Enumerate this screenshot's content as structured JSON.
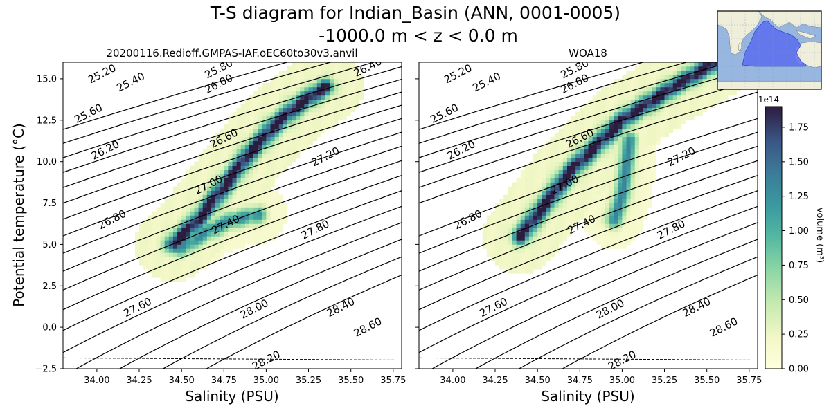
{
  "title_line1": "T-S diagram for Indian_Basin (ANN, 0001-0005)",
  "title_line2": "-1000.0 m < z < 0.0 m",
  "chart_data": [
    {
      "type": "heatmap",
      "panel": "left",
      "title": "20200116.Redioff.GMPAS-IAF.oEC60to30v3.anvil",
      "xlabel": "Salinity (PSU)",
      "ylabel": "Potential temperature ($^\\circ$C)",
      "ylabel_display": "Potential temperature (°C)",
      "xlim": [
        33.8,
        35.8
      ],
      "ylim": [
        -2.5,
        16.0
      ],
      "xticks": [
        "34.00",
        "34.25",
        "34.50",
        "34.75",
        "35.00",
        "35.25",
        "35.50",
        "35.75"
      ],
      "xtick_values": [
        34.0,
        34.25,
        34.5,
        34.75,
        35.0,
        35.25,
        35.5,
        35.75
      ],
      "yticks": [
        "−2.5",
        "0.0",
        "2.5",
        "5.0",
        "7.5",
        "10.0",
        "12.5",
        "15.0"
      ],
      "ytick_values": [
        -2.5,
        0.0,
        2.5,
        5.0,
        7.5,
        10.0,
        12.5,
        15.0
      ],
      "freezing_line": {
        "s": [
          33.8,
          35.8
        ],
        "t": [
          -1.85,
          -1.98
        ]
      },
      "main_ridge": [
        [
          34.45,
          5.0
        ],
        [
          34.6,
          6.5
        ],
        [
          34.75,
          8.5
        ],
        [
          34.9,
          10.5
        ],
        [
          35.05,
          12.2
        ],
        [
          35.2,
          13.5
        ],
        [
          35.35,
          14.5
        ]
      ],
      "secondary_ridge": [
        [
          34.5,
          4.8
        ],
        [
          34.65,
          5.8
        ],
        [
          34.8,
          6.5
        ],
        [
          34.95,
          6.8
        ]
      ],
      "contours": [
        {
          "label": "25.20",
          "s": 34.03,
          "t": 15.3
        },
        {
          "label": "25.40",
          "s": 34.2,
          "t": 14.8
        },
        {
          "label": "25.60",
          "s": 33.95,
          "t": 12.9
        },
        {
          "label": "25.80",
          "s": 34.72,
          "t": 15.6
        },
        {
          "label": "26.00",
          "s": 34.72,
          "t": 14.7
        },
        {
          "label": "26.20",
          "s": 34.05,
          "t": 10.7
        },
        {
          "label": "26.40",
          "s": 35.6,
          "t": 15.7
        },
        {
          "label": "26.60",
          "s": 34.75,
          "t": 11.4
        },
        {
          "label": "26.80",
          "s": 34.09,
          "t": 6.5
        },
        {
          "label": "27.00",
          "s": 34.66,
          "t": 8.6
        },
        {
          "label": "27.20",
          "s": 35.35,
          "t": 10.3
        },
        {
          "label": "27.40",
          "s": 34.76,
          "t": 6.2
        },
        {
          "label": "27.60",
          "s": 34.24,
          "t": 1.2
        },
        {
          "label": "27.80",
          "s": 35.29,
          "t": 5.9
        },
        {
          "label": "28.00",
          "s": 34.93,
          "t": 1.1
        },
        {
          "label": "28.20",
          "s": 35.0,
          "t": -2.0
        },
        {
          "label": "28.40",
          "s": 35.44,
          "t": 1.2
        },
        {
          "label": "28.60",
          "s": 35.6,
          "t": 0.0
        }
      ]
    },
    {
      "type": "heatmap",
      "panel": "right",
      "title": "WOA18",
      "xlabel": "Salinity (PSU)",
      "xlim": [
        33.8,
        35.8
      ],
      "ylim": [
        -2.5,
        16.0
      ],
      "xticks": [
        "34.00",
        "34.25",
        "34.50",
        "34.75",
        "35.00",
        "35.25",
        "35.50",
        "35.75"
      ],
      "xtick_values": [
        34.0,
        34.25,
        34.5,
        34.75,
        35.0,
        35.25,
        35.5,
        35.75
      ],
      "freezing_line": {
        "s": [
          33.8,
          35.8
        ],
        "t": [
          -1.85,
          -1.98
        ]
      },
      "main_ridge": [
        [
          34.4,
          5.5
        ],
        [
          34.55,
          7.5
        ],
        [
          34.7,
          9.5
        ],
        [
          34.85,
          11.0
        ],
        [
          35.0,
          12.5
        ],
        [
          35.15,
          13.5
        ],
        [
          35.3,
          14.5
        ],
        [
          35.55,
          16.0
        ]
      ],
      "secondary_ridge": [
        [
          34.95,
          6.5
        ],
        [
          35.0,
          8.0
        ],
        [
          35.02,
          9.5
        ],
        [
          35.04,
          11.3
        ]
      ],
      "contours": [
        {
          "label": "25.20",
          "s": 34.03,
          "t": 15.3
        },
        {
          "label": "25.40",
          "s": 34.2,
          "t": 14.8
        },
        {
          "label": "25.60",
          "s": 33.95,
          "t": 12.9
        },
        {
          "label": "25.80",
          "s": 34.72,
          "t": 15.6
        },
        {
          "label": "26.00",
          "s": 34.72,
          "t": 14.7
        },
        {
          "label": "26.20",
          "s": 34.05,
          "t": 10.7
        },
        {
          "label": "26.60",
          "s": 34.75,
          "t": 11.4
        },
        {
          "label": "26.80",
          "s": 34.09,
          "t": 6.5
        },
        {
          "label": "27.00",
          "s": 34.66,
          "t": 8.6
        },
        {
          "label": "27.20",
          "s": 35.35,
          "t": 10.3
        },
        {
          "label": "27.40",
          "s": 34.76,
          "t": 6.2
        },
        {
          "label": "27.60",
          "s": 34.24,
          "t": 1.2
        },
        {
          "label": "27.80",
          "s": 35.29,
          "t": 5.9
        },
        {
          "label": "28.00",
          "s": 34.93,
          "t": 1.1
        },
        {
          "label": "28.20",
          "s": 35.0,
          "t": -2.0
        },
        {
          "label": "28.40",
          "s": 35.44,
          "t": 1.2
        },
        {
          "label": "28.60",
          "s": 35.6,
          "t": 0.0
        }
      ]
    }
  ],
  "colorbar": {
    "label": "volume (m$^3$)",
    "label_display": "volume (m³)",
    "exponent": "1e14",
    "range": [
      0.0,
      1.9
    ],
    "ticks": [
      "0.00",
      "0.25",
      "0.50",
      "0.75",
      "1.00",
      "1.25",
      "1.50",
      "1.75"
    ],
    "tick_values": [
      0.0,
      0.25,
      0.5,
      0.75,
      1.0,
      1.25,
      1.5,
      1.75
    ]
  },
  "colors": {
    "ocean": "#97b6e0",
    "land": "#efeedb",
    "basin": "#5b6df0",
    "contour": "#000000"
  },
  "inset_map": {
    "region": "Indian_Basin"
  }
}
